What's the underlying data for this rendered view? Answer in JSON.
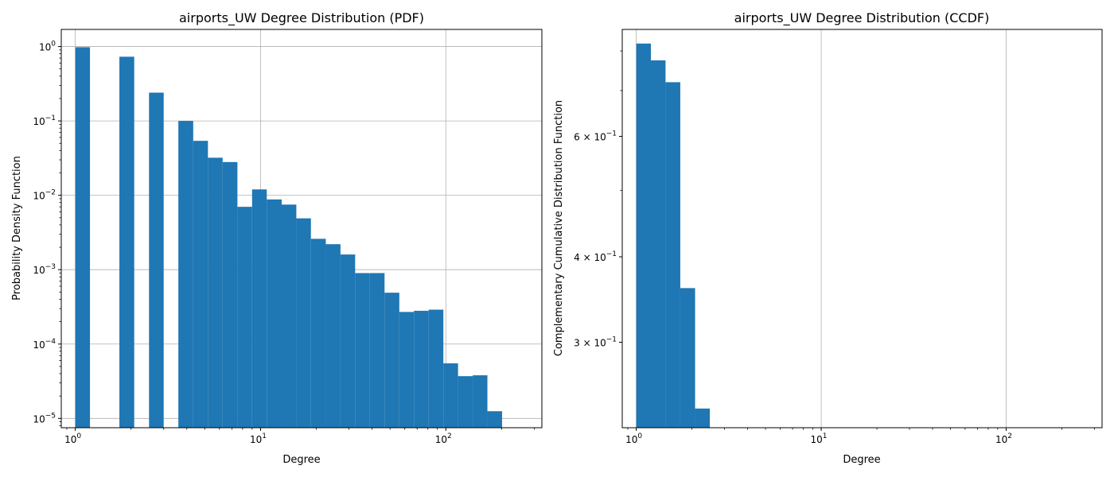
{
  "chart_data": [
    {
      "type": "bar",
      "title": "airports_UW Degree Distribution (PDF)",
      "xlabel": "Degree",
      "ylabel": "Probability Density Function",
      "xscale": "log",
      "yscale": "log",
      "xlim": [
        0.84,
        330
      ],
      "ylim": [
        7.5e-06,
        1.7
      ],
      "grid": true,
      "color": "#1f77b4",
      "xticks": [
        {
          "value": 1,
          "base": "10",
          "exp": "0"
        },
        {
          "value": 10,
          "base": "10",
          "exp": "1"
        },
        {
          "value": 100,
          "base": "10",
          "exp": "2"
        }
      ],
      "yticks": [
        {
          "value": 1e-05,
          "base": "10",
          "exp": "−5"
        },
        {
          "value": 0.0001,
          "base": "10",
          "exp": "−4"
        },
        {
          "value": 0.001,
          "base": "10",
          "exp": "−3"
        },
        {
          "value": 0.01,
          "base": "10",
          "exp": "−2"
        },
        {
          "value": 0.1,
          "base": "10",
          "exp": "−1"
        },
        {
          "value": 1,
          "base": "10",
          "exp": "0"
        }
      ],
      "bins": [
        {
          "x0": 1.0,
          "x1": 1.2,
          "value": 0.98
        },
        {
          "x0": 1.2,
          "x1": 1.44,
          "value": 0
        },
        {
          "x0": 1.44,
          "x1": 1.73,
          "value": 0
        },
        {
          "x0": 1.73,
          "x1": 2.08,
          "value": 0.73
        },
        {
          "x0": 2.08,
          "x1": 2.5,
          "value": 0
        },
        {
          "x0": 2.5,
          "x1": 3.0,
          "value": 0.24
        },
        {
          "x0": 3.0,
          "x1": 3.6,
          "value": 0
        },
        {
          "x0": 3.6,
          "x1": 4.33,
          "value": 0.1
        },
        {
          "x0": 4.33,
          "x1": 5.2,
          "value": 0.054
        },
        {
          "x0": 5.2,
          "x1": 6.24,
          "value": 0.032
        },
        {
          "x0": 6.24,
          "x1": 7.5,
          "value": 0.028
        },
        {
          "x0": 7.5,
          "x1": 9.0,
          "value": 0.007
        },
        {
          "x0": 9.0,
          "x1": 10.8,
          "value": 0.012
        },
        {
          "x0": 10.8,
          "x1": 13.0,
          "value": 0.0088
        },
        {
          "x0": 13.0,
          "x1": 15.6,
          "value": 0.0075
        },
        {
          "x0": 15.6,
          "x1": 18.7,
          "value": 0.0049
        },
        {
          "x0": 18.7,
          "x1": 22.5,
          "value": 0.0026
        },
        {
          "x0": 22.5,
          "x1": 27.0,
          "value": 0.0022
        },
        {
          "x0": 27.0,
          "x1": 32.4,
          "value": 0.0016
        },
        {
          "x0": 32.4,
          "x1": 38.9,
          "value": 0.0009
        },
        {
          "x0": 38.9,
          "x1": 46.7,
          "value": 0.0009
        },
        {
          "x0": 46.7,
          "x1": 56.1,
          "value": 0.00049
        },
        {
          "x0": 56.1,
          "x1": 67.3,
          "value": 0.00027
        },
        {
          "x0": 67.3,
          "x1": 80.8,
          "value": 0.00028
        },
        {
          "x0": 80.8,
          "x1": 97.0,
          "value": 0.00029
        },
        {
          "x0": 97.0,
          "x1": 116.4,
          "value": 5.5e-05
        },
        {
          "x0": 116.4,
          "x1": 139.7,
          "value": 3.7e-05
        },
        {
          "x0": 139.7,
          "x1": 167.7,
          "value": 3.8e-05
        },
        {
          "x0": 167.7,
          "x1": 201.2,
          "value": 1.25e-05
        }
      ]
    },
    {
      "type": "bar",
      "title": "airports_UW Degree Distribution (CCDF)",
      "xlabel": "Degree",
      "ylabel": "Complementary Cumulative Distribution Function",
      "xscale": "log",
      "yscale": "log",
      "xlim": [
        0.84,
        330
      ],
      "ylim": [
        0.225,
        0.86
      ],
      "grid": true,
      "color": "#1f77b4",
      "xticks": [
        {
          "value": 1,
          "base": "10",
          "exp": "0"
        },
        {
          "value": 10,
          "base": "10",
          "exp": "1"
        },
        {
          "value": 100,
          "base": "10",
          "exp": "2"
        }
      ],
      "yticks": [
        {
          "value": 0.3,
          "base": "3 × 10",
          "exp": "−1"
        },
        {
          "value": 0.4,
          "base": "4 × 10",
          "exp": "−1"
        },
        {
          "value": 0.6,
          "base": "6 × 10",
          "exp": "−1"
        }
      ],
      "bins": [
        {
          "x0": 1.0,
          "x1": 1.2,
          "value": 0.82
        },
        {
          "x0": 1.2,
          "x1": 1.44,
          "value": 0.775
        },
        {
          "x0": 1.44,
          "x1": 1.73,
          "value": 0.72
        },
        {
          "x0": 1.73,
          "x1": 2.08,
          "value": 0.36
        },
        {
          "x0": 2.08,
          "x1": 2.5,
          "value": 0.24
        }
      ]
    }
  ]
}
